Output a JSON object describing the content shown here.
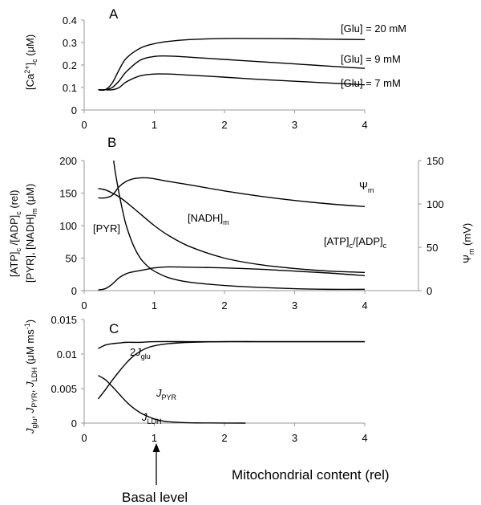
{
  "figure": {
    "xlabel": "Mitochondrial content (rel)",
    "basal_label": "Basal level"
  },
  "chart_data": [
    {
      "type": "line",
      "panel": "A",
      "ylabel": "[Ca2+]c (μM)",
      "xlim": [
        0,
        4
      ],
      "ylim": [
        0,
        0.4
      ],
      "x_ticks": [
        0,
        1,
        2,
        3,
        4
      ],
      "y_ticks": [
        0,
        0.1,
        0.2,
        0.3,
        0.4
      ],
      "y_tick_labels": [
        "0",
        "0.1",
        "0.2",
        "0.3",
        "0.4"
      ],
      "series": [
        {
          "name": "[Glu] = 20 mM",
          "x": [
            0.2,
            0.3,
            0.4,
            0.5,
            0.6,
            0.8,
            1.0,
            1.2,
            1.5,
            2.0,
            2.5,
            3.0,
            3.5,
            4.0
          ],
          "y": [
            0.09,
            0.09,
            0.12,
            0.18,
            0.23,
            0.275,
            0.295,
            0.305,
            0.313,
            0.318,
            0.318,
            0.317,
            0.315,
            0.313
          ]
        },
        {
          "name": "[Glu] = 9 mM",
          "x": [
            0.2,
            0.3,
            0.4,
            0.5,
            0.6,
            0.8,
            1.0,
            1.2,
            1.5,
            2.0,
            2.5,
            3.0,
            3.5,
            4.0
          ],
          "y": [
            0.09,
            0.09,
            0.1,
            0.13,
            0.17,
            0.222,
            0.238,
            0.24,
            0.235,
            0.225,
            0.215,
            0.205,
            0.195,
            0.185
          ]
        },
        {
          "name": "[Glu] = 7 mM",
          "x": [
            0.2,
            0.3,
            0.4,
            0.5,
            0.6,
            0.8,
            1.0,
            1.2,
            1.5,
            2.0,
            2.5,
            3.0,
            3.5,
            4.0
          ],
          "y": [
            0.09,
            0.09,
            0.09,
            0.1,
            0.125,
            0.152,
            0.16,
            0.16,
            0.155,
            0.146,
            0.136,
            0.128,
            0.12,
            0.112
          ]
        }
      ]
    },
    {
      "type": "line",
      "panel": "B",
      "ylabel_left": "[ATP]c/[ADP]c (rel), [PYR], [NADH]m (μM)",
      "ylabel_right": "Ψm (mV)",
      "xlim": [
        0,
        4
      ],
      "ylim": [
        0,
        200
      ],
      "ylim_right": [
        0,
        150
      ],
      "x_ticks": [
        0,
        1,
        2,
        3,
        4
      ],
      "y_ticks": [
        0,
        50,
        100,
        150,
        200
      ],
      "y_ticks_right": [
        0,
        50,
        100,
        150
      ],
      "series": [
        {
          "name": "Ψm",
          "axis": "right",
          "x": [
            0.2,
            0.3,
            0.4,
            0.5,
            0.6,
            0.7,
            0.8,
            0.9,
            1.0,
            1.2,
            1.5,
            2.0,
            2.5,
            3.0,
            3.5,
            4.0
          ],
          "y": [
            107,
            107,
            110,
            120,
            126,
            129,
            130,
            130,
            129,
            126,
            122,
            115,
            109,
            104,
            100,
            97
          ]
        },
        {
          "name": "[NADH]m",
          "axis": "left",
          "x": [
            0.2,
            0.3,
            0.4,
            0.5,
            0.6,
            0.8,
            1.0,
            1.2,
            1.5,
            2.0,
            2.5,
            3.0,
            3.5,
            4.0
          ],
          "y": [
            157,
            155,
            150,
            144,
            136,
            118,
            100,
            85,
            68,
            50,
            40,
            34,
            30,
            28
          ]
        },
        {
          "name": "[PYR]",
          "axis": "left",
          "x": [
            0.42,
            0.45,
            0.5,
            0.55,
            0.6,
            0.7,
            0.8,
            0.9,
            1.0,
            1.2,
            1.5,
            2.0,
            2.5,
            3.0,
            3.5,
            4.0
          ],
          "y": [
            200,
            178,
            148,
            122,
            100,
            70,
            50,
            38,
            30,
            20,
            13,
            8,
            5,
            3,
            2,
            2
          ]
        },
        {
          "name": "[ATP]c/[ADP]c",
          "axis": "left",
          "x": [
            0.2,
            0.3,
            0.4,
            0.5,
            0.6,
            0.7,
            0.8,
            0.9,
            1.0,
            1.2,
            1.5,
            2.0,
            2.5,
            3.0,
            3.5,
            4.0
          ],
          "y": [
            1,
            3,
            10,
            20,
            26,
            29,
            31,
            33,
            35,
            36.5,
            36,
            35,
            33,
            30,
            27,
            23
          ]
        }
      ]
    },
    {
      "type": "line",
      "panel": "C",
      "ylabel": "Jglu, JPYR, JLDH (μM ms-1)",
      "xlim": [
        0,
        4
      ],
      "ylim": [
        0,
        0.015
      ],
      "x_ticks": [
        0,
        1,
        2,
        3,
        4
      ],
      "y_ticks": [
        0,
        0.005,
        0.01,
        0.015
      ],
      "y_tick_labels": [
        "0",
        "0.005",
        "0.01",
        "0.015"
      ],
      "series": [
        {
          "name": "2Jglu",
          "x": [
            0.2,
            0.3,
            0.4,
            0.5,
            0.6,
            0.8,
            1.0,
            1.5,
            2.0,
            2.5,
            3.0,
            3.5,
            4.0
          ],
          "y": [
            0.0108,
            0.0113,
            0.0115,
            0.0116,
            0.0117,
            0.0117,
            0.0118,
            0.0118,
            0.0118,
            0.0118,
            0.0118,
            0.0118,
            0.0118
          ]
        },
        {
          "name": "JPYR",
          "x": [
            0.2,
            0.3,
            0.4,
            0.5,
            0.6,
            0.7,
            0.8,
            0.9,
            1.0,
            1.2,
            1.5,
            2.0,
            2.5,
            3.0,
            3.5,
            4.0
          ],
          "y": [
            0.0035,
            0.0048,
            0.0062,
            0.0075,
            0.0087,
            0.0097,
            0.0104,
            0.0109,
            0.0112,
            0.0115,
            0.0117,
            0.0118,
            0.0118,
            0.0118,
            0.0118,
            0.0118
          ]
        },
        {
          "name": "JLDH",
          "x": [
            0.2,
            0.3,
            0.4,
            0.5,
            0.6,
            0.7,
            0.8,
            0.9,
            1.0,
            1.1,
            1.2,
            1.4,
            1.6,
            2.0,
            2.3
          ],
          "y": [
            0.0069,
            0.0063,
            0.0053,
            0.0042,
            0.0031,
            0.0022,
            0.0015,
            0.001,
            0.0006,
            0.00035,
            0.0002,
            8e-05,
            3e-05,
            1e-05,
            0
          ]
        }
      ]
    }
  ]
}
